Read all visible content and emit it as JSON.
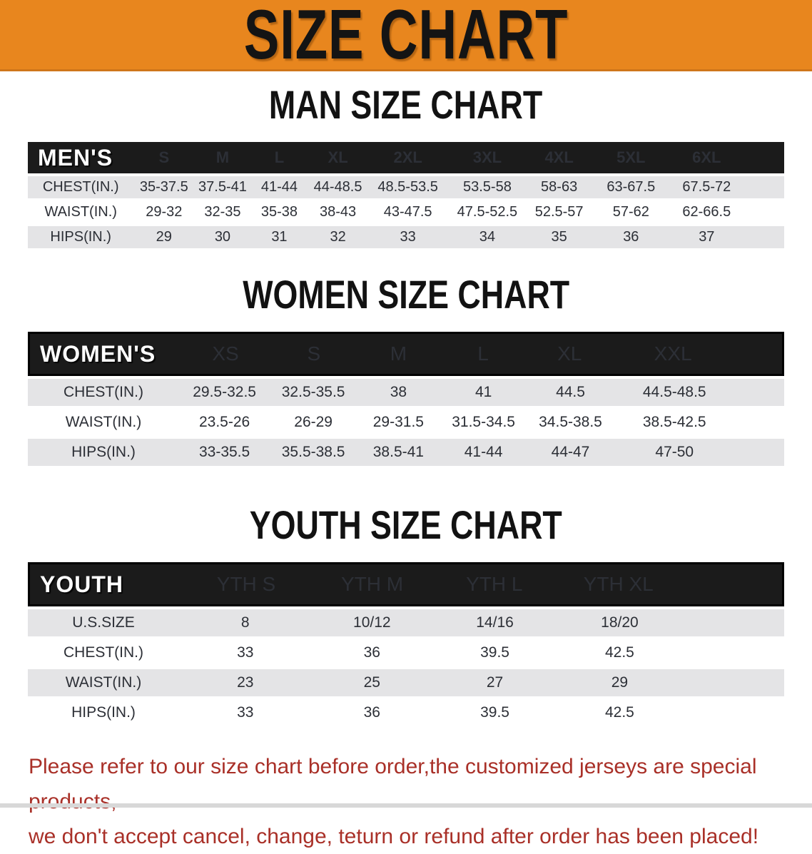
{
  "banner": {
    "title": "SIZE CHART"
  },
  "colors": {
    "banner_bg": "#E8861E",
    "banner_edge": "#CF761A",
    "header_band_bg": "#1B1B1B",
    "stripe_gray": "#E4E4E6",
    "footer_red": "#A93028",
    "data_ink": "#2C2F36"
  },
  "sections": [
    {
      "id": "men",
      "heading": "MAN SIZE CHART",
      "table_label": "MEN'S",
      "columns": [
        "S",
        "M",
        "L",
        "XL",
        "2XL",
        "3XL",
        "4XL",
        "5XL",
        "6XL"
      ],
      "rows": [
        {
          "label": "CHEST(IN.)",
          "values": [
            "35-37.5",
            "37.5-41",
            "41-44",
            "44-48.5",
            "48.5-53.5",
            "53.5-58",
            "58-63",
            "63-67.5",
            "67.5-72"
          ]
        },
        {
          "label": "WAIST(IN.)",
          "values": [
            "29-32",
            "32-35",
            "35-38",
            "38-43",
            "43-47.5",
            "47.5-52.5",
            "52.5-57",
            "57-62",
            "62-66.5"
          ]
        },
        {
          "label": "HIPS(IN.)",
          "values": [
            "29",
            "30",
            "31",
            "32",
            "33",
            "34",
            "35",
            "36",
            "37"
          ]
        }
      ]
    },
    {
      "id": "women",
      "heading": "WOMEN SIZE CHART",
      "table_label": "WOMEN'S",
      "columns": [
        "XS",
        "S",
        "M",
        "L",
        "XL",
        "XXL"
      ],
      "rows": [
        {
          "label": "CHEST(IN.)",
          "values": [
            "29.5-32.5",
            "32.5-35.5",
            "38",
            "41",
            "44.5",
            "44.5-48.5"
          ]
        },
        {
          "label": "WAIST(IN.)",
          "values": [
            "23.5-26",
            "26-29",
            "29-31.5",
            "31.5-34.5",
            "34.5-38.5",
            "38.5-42.5"
          ]
        },
        {
          "label": "HIPS(IN.)",
          "values": [
            "33-35.5",
            "35.5-38.5",
            "38.5-41",
            "41-44",
            "44-47",
            "47-50"
          ]
        }
      ]
    },
    {
      "id": "youth",
      "heading": "YOUTH SIZE CHART",
      "table_label": "YOUTH",
      "columns": [
        "YTH S",
        "YTH M",
        "YTH L",
        "YTH XL"
      ],
      "rows": [
        {
          "label": "U.S.SIZE",
          "values": [
            "8",
            "10/12",
            "14/16",
            "18/20"
          ]
        },
        {
          "label": "CHEST(IN.)",
          "values": [
            "33",
            "36",
            "39.5",
            "42.5"
          ]
        },
        {
          "label": "WAIST(IN.)",
          "values": [
            "23",
            "25",
            "27",
            "29"
          ]
        },
        {
          "label": "HIPS(IN.)",
          "values": [
            "33",
            "36",
            "39.5",
            "42.5"
          ]
        }
      ]
    }
  ],
  "footer": {
    "line1": "Please refer to our size chart before order,the customized jerseys are special products,",
    "line2": "we don't accept cancel, change, teturn or refund after order has been placed!"
  }
}
